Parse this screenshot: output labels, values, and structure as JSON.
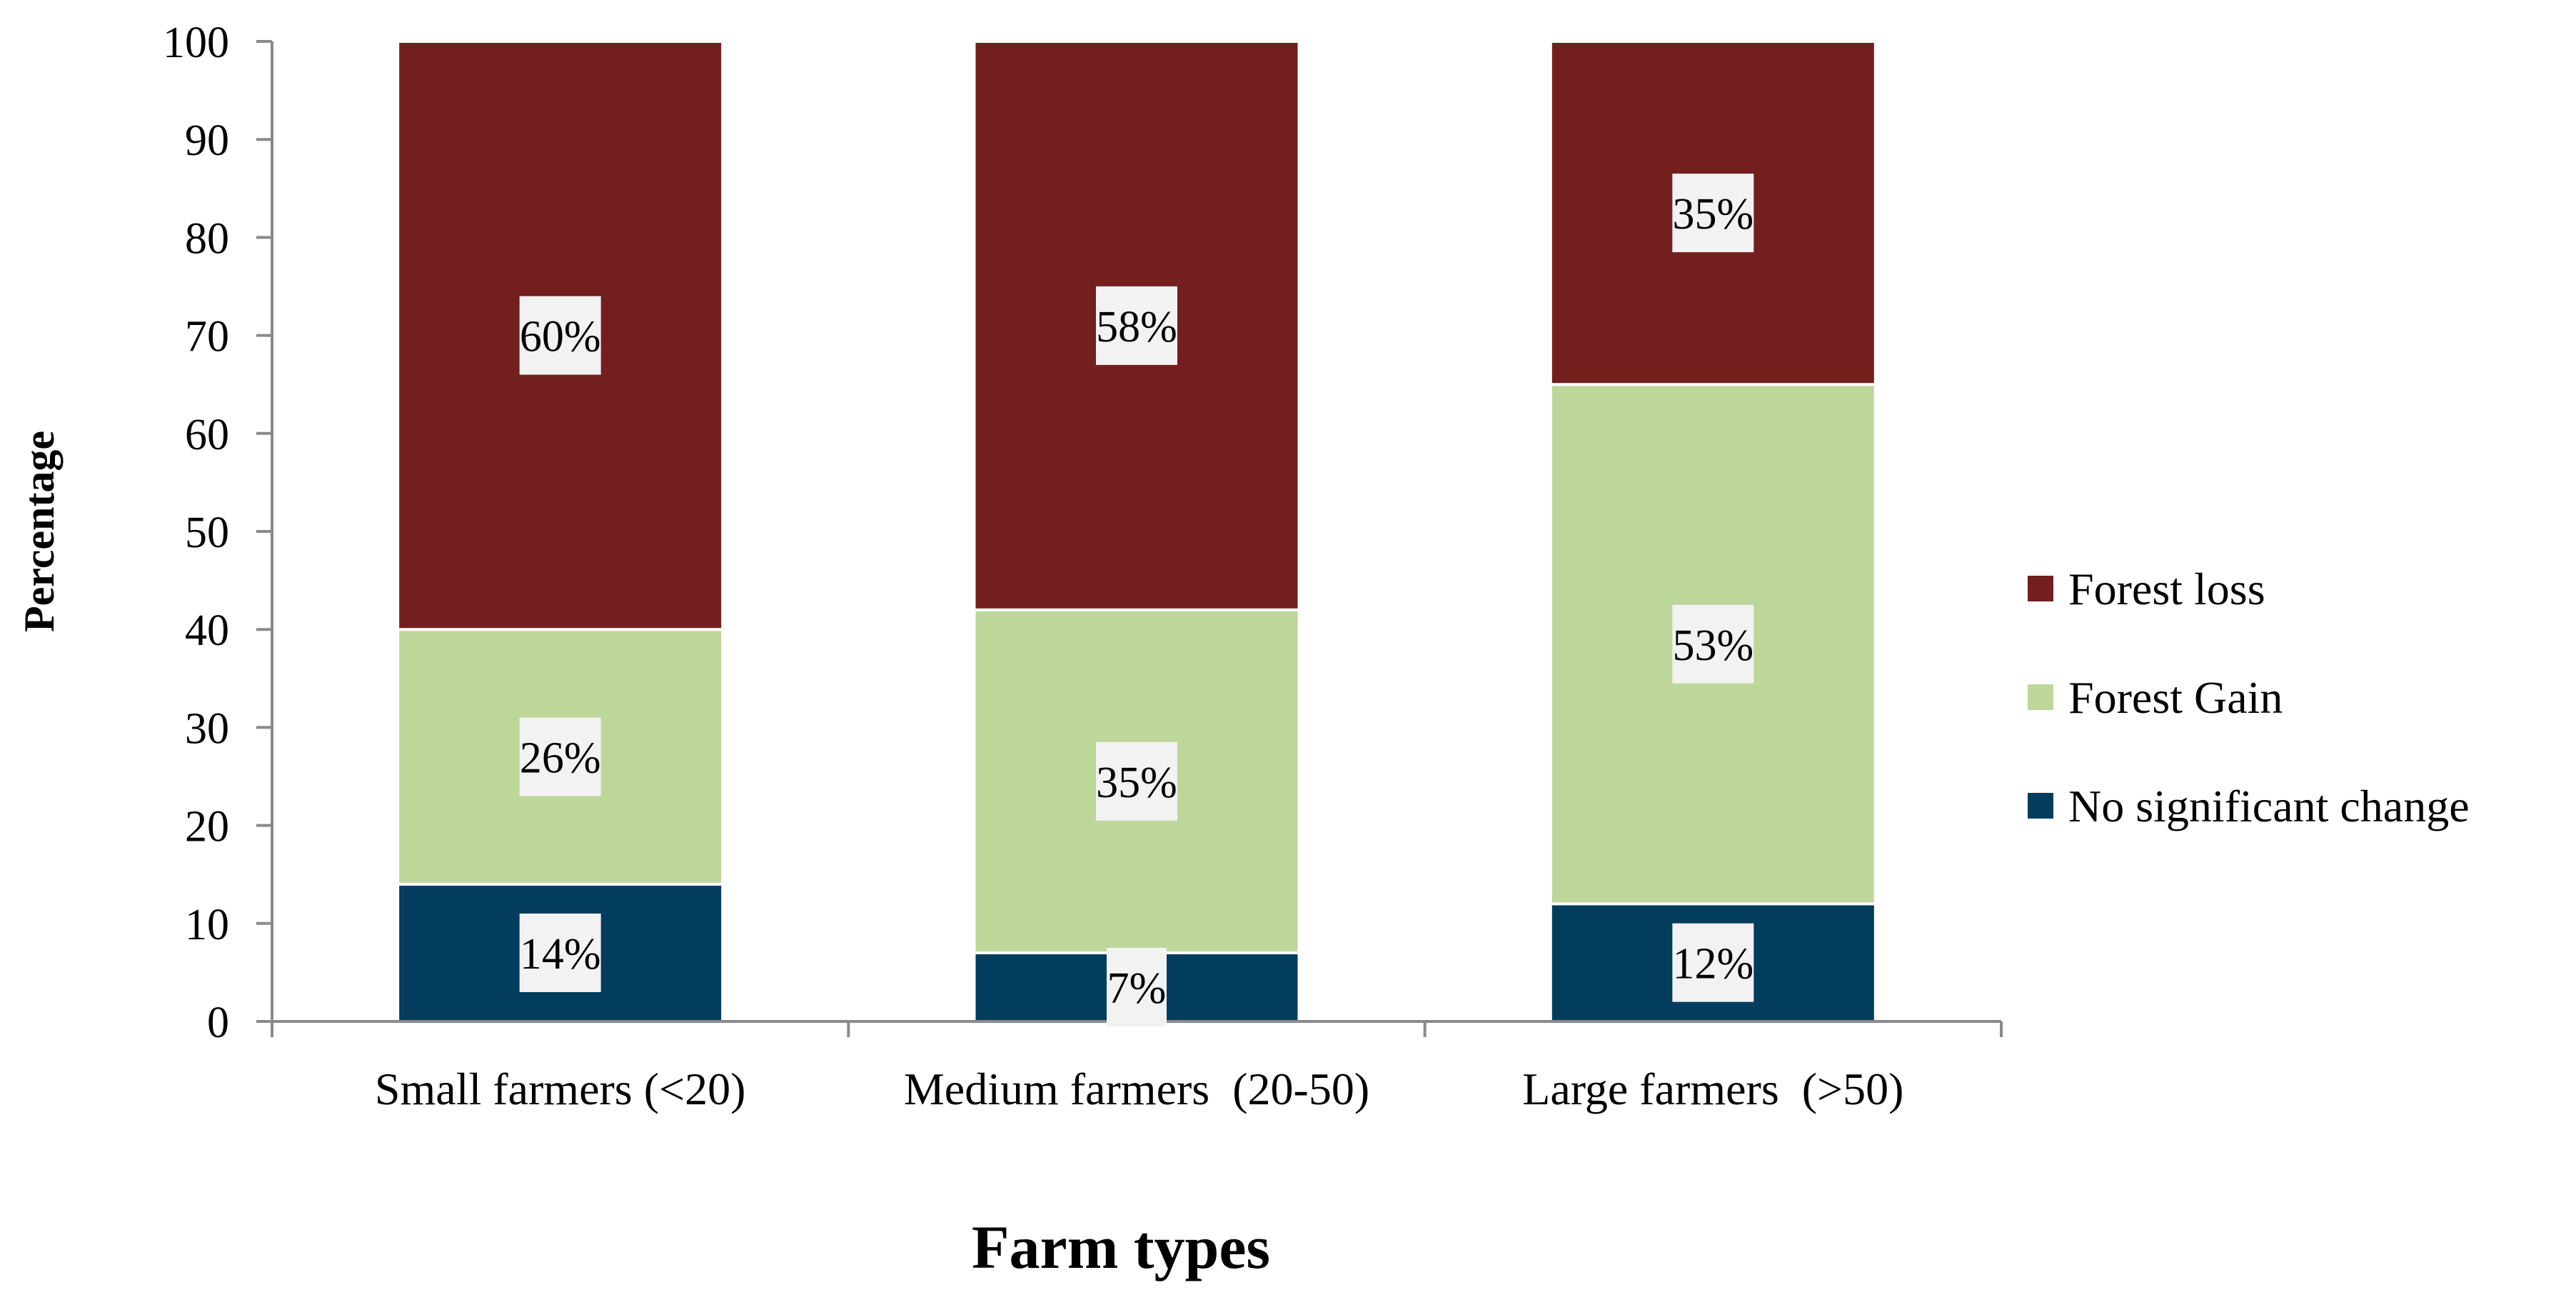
{
  "chart_data": {
    "type": "bar",
    "stacked": true,
    "categories": [
      "Small farmers (<20)",
      "Medium farmers  (20-50)",
      "Large farmers  (>50)"
    ],
    "series": [
      {
        "name": "No significant change",
        "values": [
          14,
          7,
          12
        ],
        "color": "#023d5e",
        "labels": [
          "14%",
          "7%",
          "12%"
        ]
      },
      {
        "name": "Forest Gain",
        "values": [
          26,
          35,
          53
        ],
        "color": "#bdd79b",
        "labels": [
          "26%",
          "35%",
          "53%"
        ]
      },
      {
        "name": "Forest loss",
        "values": [
          60,
          58,
          35
        ],
        "color": "#721f1e",
        "labels": [
          "60%",
          "58%",
          "35%"
        ]
      }
    ],
    "legend_order": [
      "Forest loss",
      "Forest Gain",
      "No significant change"
    ],
    "legend_position": "right",
    "xlabel": "Farm types",
    "ylabel": "Percentage",
    "ylim": [
      0,
      100
    ],
    "yticks": [
      0,
      10,
      20,
      30,
      40,
      50,
      60,
      70,
      80,
      90,
      100
    ],
    "grid": false
  },
  "colors": {
    "axis": "#8a8a8a",
    "label_box": "#f2f2f2",
    "text": "#000000"
  }
}
